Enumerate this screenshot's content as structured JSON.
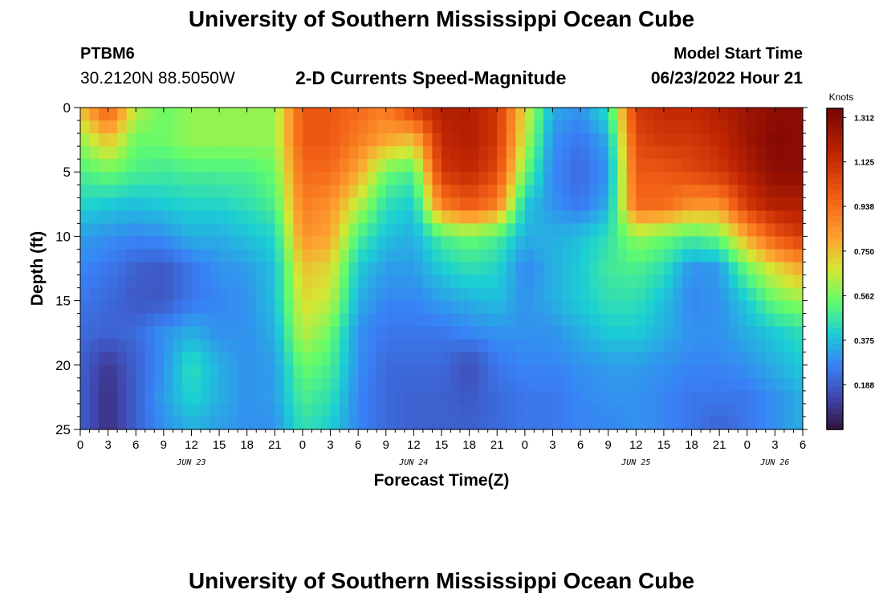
{
  "header": {
    "title": "University of Southern Mississippi Ocean Cube",
    "station": "PTBM6",
    "coords": "30.2120N  88.5050W",
    "subtitle": "2-D Currents Speed-Magnitude",
    "model_start_label": "Model Start Time",
    "model_start_value": "06/23/2022 Hour 21"
  },
  "footer": {
    "title": "University of Southern Mississippi Ocean Cube"
  },
  "chart_data": {
    "type": "heatmap",
    "title": "2-D Currents Speed-Magnitude",
    "xlabel": "Forecast Time(Z)",
    "ylabel": "Depth (ft)",
    "x_unit": "hours since 2022-06-23 00Z",
    "x_range": [
      0,
      78
    ],
    "y_range": [
      0,
      25
    ],
    "y_inverted": true,
    "x_ticks": [
      "0",
      "3",
      "6",
      "9",
      "12",
      "15",
      "18",
      "21",
      "0",
      "3",
      "6",
      "9",
      "12",
      "15",
      "18",
      "21",
      "0",
      "3",
      "6",
      "9",
      "12",
      "15",
      "18",
      "21",
      "0",
      "3",
      "6"
    ],
    "y_ticks": [
      "0",
      "5",
      "10",
      "15",
      "20",
      "25"
    ],
    "date_labels": [
      {
        "hour": 12,
        "label": "JUN 23"
      },
      {
        "hour": 36,
        "label": "JUN 24"
      },
      {
        "hour": 60,
        "label": "JUN 25"
      },
      {
        "hour": 75,
        "label": "JUN 26"
      }
    ],
    "colorbar": {
      "label": "Knots",
      "min": 0.0,
      "max": 1.35,
      "ticks": [
        "1.312",
        "1.125",
        "0.938",
        "0.750",
        "0.562",
        "0.375",
        "0.188"
      ],
      "tick_values": [
        1.312,
        1.125,
        0.938,
        0.75,
        0.562,
        0.375,
        0.188
      ]
    },
    "grid": false,
    "speed_knots_by_hour": {
      "hours": [
        0,
        3,
        6,
        9,
        12,
        15,
        18,
        21,
        24,
        27,
        30,
        33,
        36,
        39,
        42,
        45,
        48,
        51,
        54,
        57,
        60,
        63,
        66,
        69,
        72,
        75,
        78
      ],
      "depths_ft": [
        0,
        2.5,
        5,
        7.5,
        10,
        12.5,
        15,
        17.5,
        20,
        22.5,
        25
      ],
      "values": [
        [
          0.75,
          1.0,
          0.65,
          0.55,
          0.6,
          0.6,
          0.6,
          0.6,
          1.0,
          1.0,
          0.95,
          0.9,
          1.1,
          1.2,
          1.2,
          1.1,
          0.7,
          0.35,
          0.3,
          0.45,
          1.1,
          1.15,
          1.15,
          1.2,
          1.25,
          1.3,
          1.3
        ],
        [
          0.6,
          0.75,
          0.55,
          0.55,
          0.6,
          0.6,
          0.6,
          0.6,
          1.0,
          1.0,
          0.9,
          0.8,
          0.75,
          1.15,
          1.2,
          1.1,
          0.65,
          0.3,
          0.25,
          0.35,
          1.05,
          1.1,
          1.1,
          1.15,
          1.25,
          1.32,
          1.3
        ],
        [
          0.5,
          0.55,
          0.5,
          0.48,
          0.5,
          0.5,
          0.5,
          0.55,
          0.95,
          0.95,
          0.8,
          0.55,
          0.5,
          1.1,
          1.15,
          1.05,
          0.55,
          0.28,
          0.22,
          0.3,
          1.0,
          1.0,
          1.05,
          1.1,
          1.2,
          1.3,
          1.3
        ],
        [
          0.42,
          0.4,
          0.38,
          0.4,
          0.42,
          0.42,
          0.45,
          0.5,
          0.9,
          0.85,
          0.65,
          0.45,
          0.4,
          0.9,
          1.0,
          0.9,
          0.4,
          0.3,
          0.25,
          0.35,
          0.95,
          0.95,
          0.85,
          0.85,
          1.1,
          1.2,
          1.2
        ],
        [
          0.32,
          0.3,
          0.28,
          0.3,
          0.35,
          0.35,
          0.38,
          0.42,
          0.85,
          0.8,
          0.5,
          0.38,
          0.35,
          0.5,
          0.55,
          0.5,
          0.35,
          0.35,
          0.38,
          0.45,
          0.6,
          0.55,
          0.5,
          0.55,
          0.8,
          1.0,
          1.1
        ],
        [
          0.28,
          0.25,
          0.2,
          0.18,
          0.25,
          0.3,
          0.32,
          0.38,
          0.75,
          0.7,
          0.4,
          0.32,
          0.32,
          0.4,
          0.45,
          0.42,
          0.28,
          0.35,
          0.4,
          0.48,
          0.5,
          0.45,
          0.3,
          0.32,
          0.55,
          0.7,
          0.8
        ],
        [
          0.25,
          0.22,
          0.18,
          0.18,
          0.25,
          0.28,
          0.3,
          0.38,
          0.7,
          0.65,
          0.35,
          0.28,
          0.28,
          0.32,
          0.35,
          0.38,
          0.3,
          0.35,
          0.4,
          0.45,
          0.45,
          0.38,
          0.28,
          0.3,
          0.4,
          0.55,
          0.6
        ],
        [
          0.22,
          0.2,
          0.22,
          0.3,
          0.35,
          0.3,
          0.3,
          0.35,
          0.65,
          0.55,
          0.3,
          0.25,
          0.25,
          0.25,
          0.28,
          0.3,
          0.3,
          0.3,
          0.35,
          0.4,
          0.4,
          0.35,
          0.3,
          0.3,
          0.35,
          0.4,
          0.45
        ],
        [
          0.2,
          0.1,
          0.2,
          0.3,
          0.45,
          0.35,
          0.3,
          0.32,
          0.55,
          0.5,
          0.3,
          0.22,
          0.22,
          0.22,
          0.15,
          0.25,
          0.28,
          0.28,
          0.3,
          0.32,
          0.32,
          0.3,
          0.28,
          0.28,
          0.3,
          0.35,
          0.4
        ],
        [
          0.2,
          0.08,
          0.2,
          0.32,
          0.42,
          0.35,
          0.3,
          0.32,
          0.5,
          0.45,
          0.28,
          0.22,
          0.2,
          0.2,
          0.18,
          0.22,
          0.25,
          0.25,
          0.28,
          0.3,
          0.3,
          0.28,
          0.25,
          0.25,
          0.25,
          0.3,
          0.35
        ],
        [
          0.2,
          0.08,
          0.2,
          0.3,
          0.35,
          0.32,
          0.3,
          0.3,
          0.45,
          0.4,
          0.28,
          0.22,
          0.2,
          0.2,
          0.2,
          0.22,
          0.25,
          0.25,
          0.28,
          0.28,
          0.3,
          0.28,
          0.25,
          0.2,
          0.25,
          0.3,
          0.35
        ]
      ]
    }
  }
}
